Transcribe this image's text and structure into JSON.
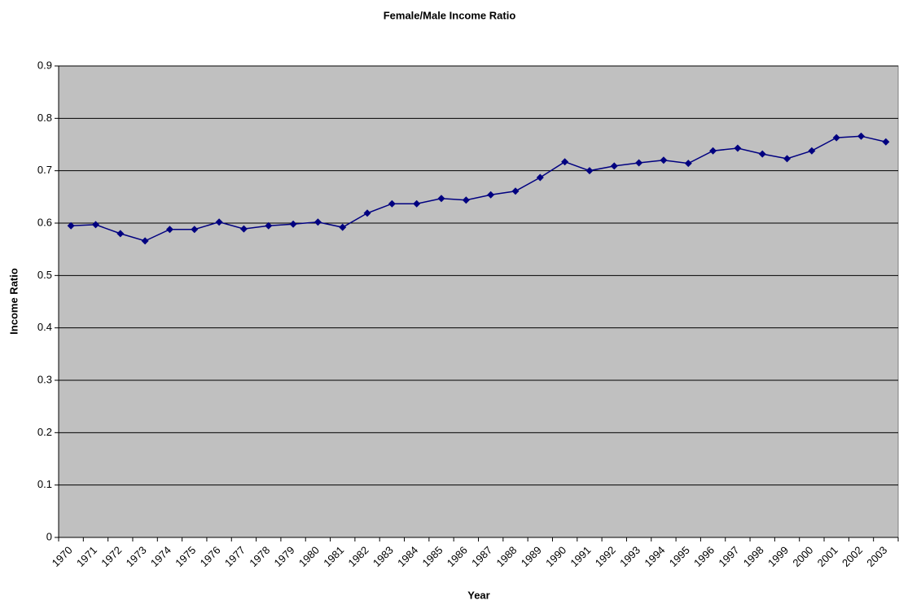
{
  "chart_data": {
    "type": "line",
    "title": "Female/Male Income Ratio",
    "xlabel": "Year",
    "ylabel": "Income Ratio",
    "categories": [
      "1970",
      "1971",
      "1972",
      "1973",
      "1974",
      "1975",
      "1976",
      "1977",
      "1978",
      "1979",
      "1980",
      "1981",
      "1982",
      "1983",
      "1984",
      "1985",
      "1986",
      "1987",
      "1988",
      "1989",
      "1990",
      "1991",
      "1992",
      "1993",
      "1994",
      "1995",
      "1996",
      "1997",
      "1998",
      "1999",
      "2000",
      "2001",
      "2002",
      "2003"
    ],
    "series": [
      {
        "name": "Income Ratio",
        "color": "#000080",
        "values": [
          0.595,
          0.597,
          0.58,
          0.566,
          0.588,
          0.588,
          0.602,
          0.589,
          0.595,
          0.598,
          0.602,
          0.592,
          0.619,
          0.637,
          0.637,
          0.647,
          0.644,
          0.654,
          0.661,
          0.687,
          0.717,
          0.7,
          0.709,
          0.715,
          0.72,
          0.714,
          0.738,
          0.743,
          0.732,
          0.723,
          0.738,
          0.763,
          0.766,
          0.755
        ]
      }
    ],
    "ylim": [
      0,
      0.9
    ],
    "yticks": [
      0,
      0.1,
      0.2,
      0.3,
      0.4,
      0.5,
      0.6,
      0.7,
      0.8,
      0.9
    ],
    "grid": true,
    "background": "#c0c0c0"
  }
}
